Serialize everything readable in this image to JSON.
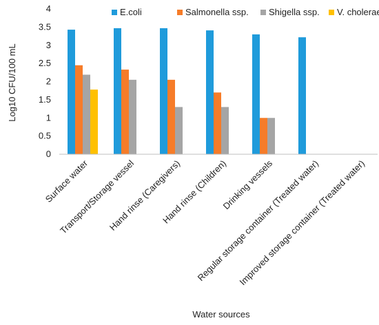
{
  "chart_data": {
    "type": "bar",
    "title": "",
    "xlabel": "Water sources",
    "ylabel": "Log10 CFU/100 mL",
    "ylim": [
      0,
      4
    ],
    "yticks": [
      "0",
      "0.5",
      "1",
      "1.5",
      "2",
      "2.5",
      "3",
      "3.5",
      "4"
    ],
    "ytick_values": [
      0,
      0.5,
      1,
      1.5,
      2,
      2.5,
      3,
      3.5,
      4
    ],
    "grid": false,
    "legend_position": "top",
    "categories": [
      "Surface water",
      "Transport/Storage vessel",
      "Hand rinse (Caregivers)",
      "Hand rinse (Children)",
      "Drinking vessels",
      "Regular storage container (Treated water)",
      "Improved storage container (Treated water)"
    ],
    "series": [
      {
        "name": "E.coli",
        "color": "#1F9BDB",
        "values": [
          3.43,
          3.47,
          3.47,
          3.41,
          3.3,
          3.22,
          0
        ]
      },
      {
        "name": "Salmonella ssp.",
        "color": "#F67C29",
        "values": [
          2.45,
          2.33,
          2.05,
          1.7,
          1.0,
          0,
          0
        ]
      },
      {
        "name": "Shigella ssp.",
        "color": "#A5A5A5",
        "values": [
          2.19,
          2.05,
          1.3,
          1.3,
          1.0,
          0,
          0
        ]
      },
      {
        "name": "V. cholerae",
        "color": "#FFC000",
        "values": [
          1.78,
          0,
          0,
          0,
          0,
          0,
          0
        ]
      }
    ]
  }
}
